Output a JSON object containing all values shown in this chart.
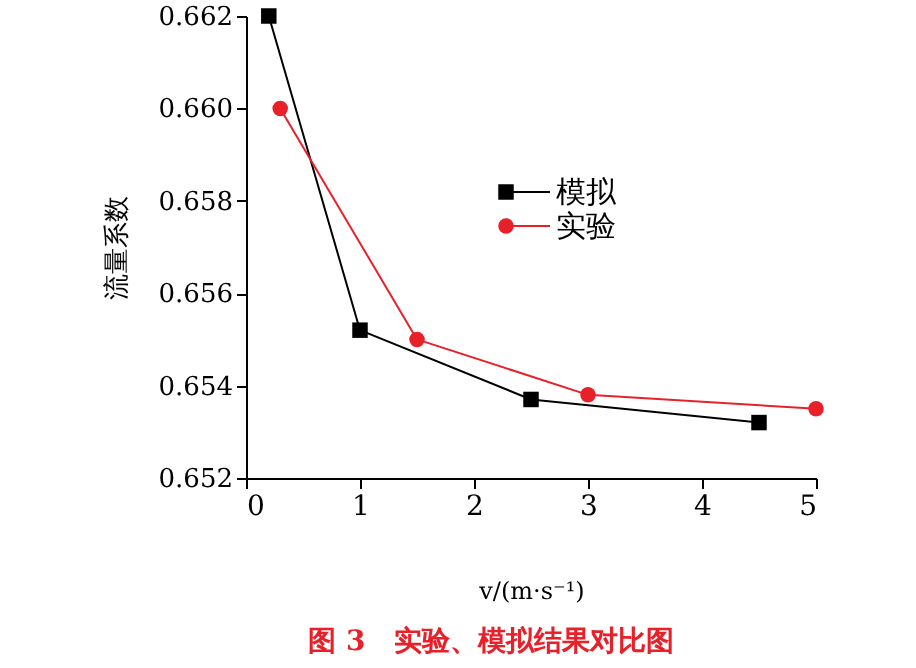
{
  "chart_data": {
    "type": "line",
    "xlabel": "v/(m·s⁻¹)",
    "ylabel": "流量系数",
    "annotations": [
      "图 3　实验、模拟结果对比图"
    ],
    "series": [
      {
        "name": "模拟",
        "color": "#000000",
        "marker": "square",
        "x": [
          0.2,
          1,
          2.5,
          4.5
        ],
        "values": [
          0.662,
          0.6552,
          0.6537,
          0.6532
        ]
      },
      {
        "name": "实验",
        "color": "#e8202a",
        "marker": "circle",
        "x": [
          0.3,
          1.5,
          3,
          5
        ],
        "values": [
          0.66,
          0.655,
          0.6538,
          0.6535
        ]
      }
    ],
    "xlim": [
      0,
      5
    ],
    "xticks": [
      0,
      1,
      2,
      3,
      4,
      5
    ],
    "ylim": [
      0.652,
      0.662
    ],
    "yticks": [
      0.652,
      0.654,
      0.656,
      0.658,
      {
        "value": 0.66,
        "label": "0.660"
      },
      0.662
    ],
    "grid": false,
    "legend": "right",
    "line_style": "solid"
  }
}
